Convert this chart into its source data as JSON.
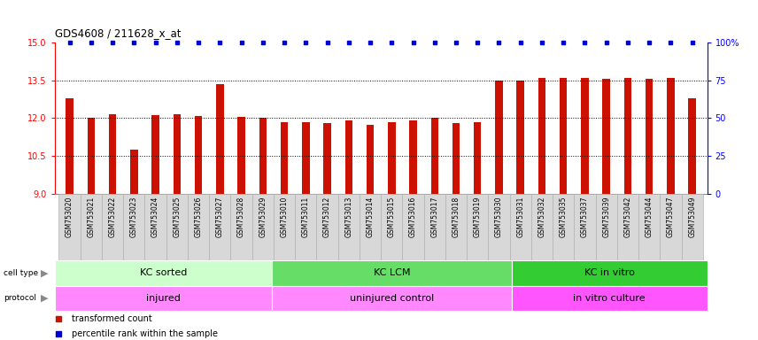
{
  "title": "GDS4608 / 211628_x_at",
  "samples": [
    "GSM753020",
    "GSM753021",
    "GSM753022",
    "GSM753023",
    "GSM753024",
    "GSM753025",
    "GSM753026",
    "GSM753027",
    "GSM753028",
    "GSM753029",
    "GSM753010",
    "GSM753011",
    "GSM753012",
    "GSM753013",
    "GSM753014",
    "GSM753015",
    "GSM753016",
    "GSM753017",
    "GSM753018",
    "GSM753019",
    "GSM753030",
    "GSM753031",
    "GSM753032",
    "GSM753035",
    "GSM753037",
    "GSM753039",
    "GSM753042",
    "GSM753044",
    "GSM753047",
    "GSM753049"
  ],
  "values": [
    12.8,
    12.0,
    12.15,
    10.75,
    12.12,
    12.15,
    12.1,
    13.35,
    12.05,
    12.0,
    11.85,
    11.85,
    11.8,
    11.9,
    11.75,
    11.85,
    11.9,
    12.0,
    11.8,
    11.85,
    13.5,
    13.5,
    13.6,
    13.6,
    13.6,
    13.55,
    13.6,
    13.55,
    13.6,
    12.8
  ],
  "ylim": [
    9,
    15
  ],
  "yticks_left": [
    9,
    10.5,
    12,
    13.5,
    15
  ],
  "yticks_right": [
    0,
    25,
    50,
    75,
    100
  ],
  "bar_color": "#cc1100",
  "dot_color": "#0000cc",
  "cell_type_groups": [
    {
      "label": "KC sorted",
      "start": 0,
      "end": 10,
      "color": "#ccffcc"
    },
    {
      "label": "KC LCM",
      "start": 10,
      "end": 21,
      "color": "#66dd66"
    },
    {
      "label": "KC in vitro",
      "start": 21,
      "end": 30,
      "color": "#33cc33"
    }
  ],
  "protocol_groups": [
    {
      "label": "injured",
      "start": 0,
      "end": 10,
      "color": "#ff88ff"
    },
    {
      "label": "uninjured control",
      "start": 10,
      "end": 21,
      "color": "#ff88ff"
    },
    {
      "label": "in vitro culture",
      "start": 21,
      "end": 30,
      "color": "#ff55ff"
    }
  ],
  "legend_items": [
    {
      "label": "transformed count",
      "color": "#cc1100"
    },
    {
      "label": "percentile rank within the sample",
      "color": "#0000cc"
    }
  ]
}
